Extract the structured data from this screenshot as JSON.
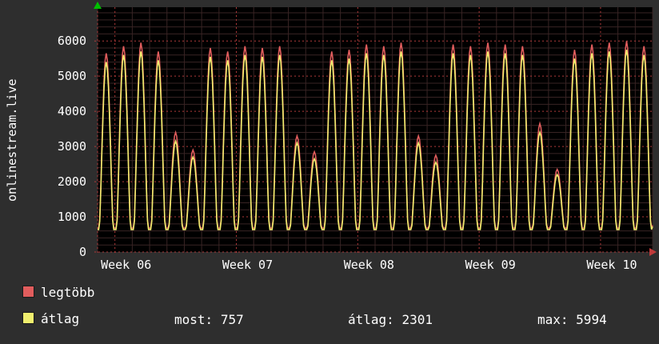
{
  "header": {
    "title": "onlinestream.live"
  },
  "chart_data": {
    "type": "line",
    "title": "onlinestream.live",
    "xlabel": "",
    "ylabel": "",
    "ylim": [
      0,
      6960
    ],
    "yticks": [
      0,
      1000,
      2000,
      3000,
      4000,
      5000,
      6000
    ],
    "x_week_labels": [
      "Week 06",
      "Week 07",
      "Week 08",
      "Week 09",
      "Week 10"
    ],
    "days_total": 32,
    "week_boundary_days": [
      1,
      8,
      15,
      22,
      29
    ],
    "grid": {
      "major_color": "#b03a3a",
      "minor_color": "#382424",
      "y_major_step": 1000,
      "y_minor_step": 200
    },
    "plot_bg": "#000000",
    "series": [
      {
        "name": "legtöbb",
        "color": "#e15d5d",
        "trough": 680,
        "daily_peaks": [
          5650,
          5850,
          5950,
          5700,
          3400,
          2900,
          5800,
          5700,
          5850,
          5800,
          5850,
          3300,
          2850,
          5700,
          5750,
          5900,
          5850,
          5950,
          3300,
          2750,
          5900,
          5850,
          5950,
          5900,
          5850,
          3650,
          2350,
          5750,
          5900,
          5950,
          5994,
          5850
        ]
      },
      {
        "name": "átlag",
        "color": "#f0ee6e",
        "trough": 640,
        "daily_peaks": [
          5400,
          5600,
          5700,
          5450,
          3150,
          2700,
          5550,
          5450,
          5600,
          5550,
          5600,
          3100,
          2650,
          5450,
          5500,
          5650,
          5600,
          5700,
          3100,
          2550,
          5650,
          5600,
          5700,
          5650,
          5600,
          3400,
          2200,
          5500,
          5650,
          5700,
          5750,
          5600
        ]
      }
    ]
  },
  "legend": {
    "items": [
      {
        "label": "legtöbb",
        "color": "#e15d5d"
      },
      {
        "label": "átlag",
        "color": "#f0ee6e"
      }
    ]
  },
  "stats": [
    {
      "label": "most:",
      "value": "757"
    },
    {
      "label": "átlag:",
      "value": "2301"
    },
    {
      "label": "max:",
      "value": "5994"
    }
  ]
}
